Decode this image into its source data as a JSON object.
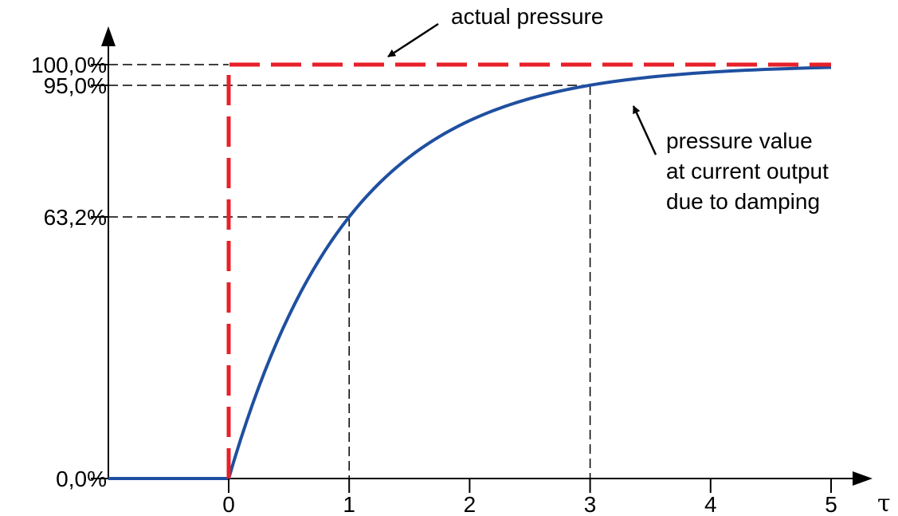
{
  "chart_data": {
    "type": "line",
    "title": "",
    "xlabel": "τ",
    "ylabel": "",
    "xlim": [
      -1,
      5.4
    ],
    "ylim": [
      0,
      1.08
    ],
    "x_ticks": [
      "0",
      "1",
      "2",
      "3",
      "4",
      "5"
    ],
    "y_ticks": [
      {
        "value": 0.0,
        "label": "0,0%"
      },
      {
        "value": 0.632,
        "label": "63,2%"
      },
      {
        "value": 0.95,
        "label": "95,0%"
      },
      {
        "value": 1.0,
        "label": "100,0%"
      }
    ],
    "grid": false,
    "series": [
      {
        "name": "actual pressure",
        "color": "#e8202a",
        "style": "dashed",
        "points": [
          [
            0,
            0
          ],
          [
            0,
            1
          ],
          [
            5,
            1
          ]
        ]
      },
      {
        "name": "pressure value at current output due to damping",
        "color": "#1f4fa0",
        "style": "solid",
        "points": [
          [
            -1,
            0
          ],
          [
            0,
            0
          ],
          [
            0.5,
            0.393
          ],
          [
            1,
            0.632
          ],
          [
            1.5,
            0.777
          ],
          [
            2,
            0.865
          ],
          [
            2.5,
            0.918
          ],
          [
            3,
            0.95
          ],
          [
            3.5,
            0.97
          ],
          [
            4,
            0.982
          ],
          [
            4.5,
            0.989
          ],
          [
            5,
            0.993
          ]
        ]
      }
    ],
    "reference_points": [
      {
        "x": 1,
        "y": 0.632
      },
      {
        "x": 3,
        "y": 0.95
      }
    ],
    "annotations": [
      {
        "text": "actual pressure",
        "target": "actual pressure"
      },
      {
        "lines": [
          "pressure value",
          "at current output",
          "due to damping"
        ],
        "target": "pressure value at current output due to damping"
      }
    ]
  }
}
